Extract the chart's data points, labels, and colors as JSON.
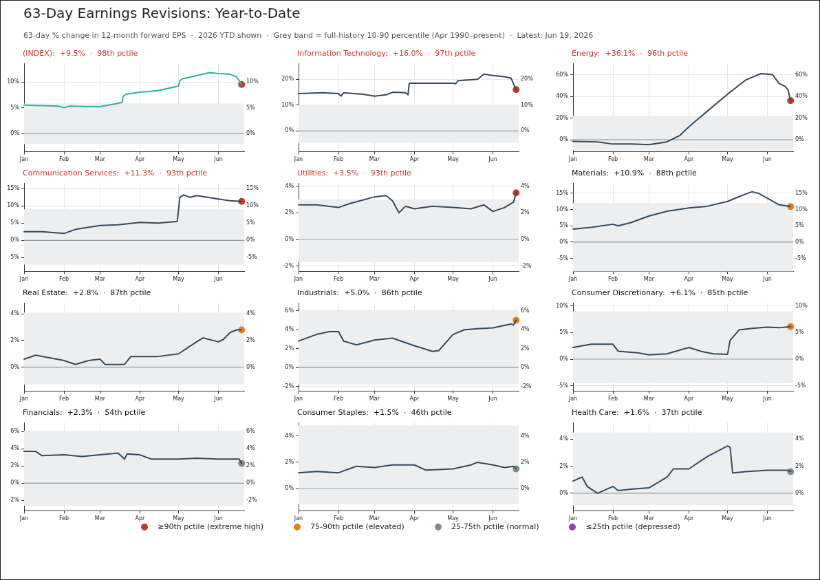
{
  "chart_data": [
    {
      "type": "other",
      "title": "63-Day Earnings Revisions: Year-to-Date",
      "subtitle": "63-day % change in 12-month forward EPS  ·  2026 YTD shown  ·  Grey band = full-history 10-90 percentile (Apr 1990–present)  ·  Latest: Jun 19, 2026"
    },
    {
      "type": "line",
      "title": "(INDEX):  +9.5%  ·  98th pctile",
      "grid": true,
      "series": [
        {
          "color": "#2ab3a3",
          "x": [
            "2026-01-01",
            "2026-01-15",
            "2026-01-28",
            "2026-02-01",
            "2026-02-05",
            "2026-02-20",
            "2026-03-01",
            "2026-03-10",
            "2026-03-18",
            "2026-03-19",
            "2026-03-21",
            "2026-04-01",
            "2026-04-15",
            "2026-05-01",
            "2026-05-02",
            "2026-05-04",
            "2026-05-15",
            "2026-05-25",
            "2026-06-01",
            "2026-06-10",
            "2026-06-15",
            "2026-06-19"
          ],
          "values": [
            5.5,
            5.4,
            5.3,
            5.0,
            5.3,
            5.2,
            5.2,
            5.6,
            6.0,
            7.2,
            7.6,
            8.0,
            8.3,
            9.2,
            10.2,
            10.6,
            11.2,
            11.8,
            11.6,
            11.5,
            11.0,
            9.5
          ]
        },
        {
          "type": "scatter",
          "x": [
            "2026-06-19"
          ],
          "color": "#c0392b",
          "values": [
            9.5
          ]
        }
      ],
      "xlim": [
        "2026-01-01",
        "2026-06-21"
      ],
      "xticks": [
        {
          "value": "2026-01-01",
          "label": "Jan"
        },
        {
          "value": "2026-02-01",
          "label": "Feb"
        },
        {
          "value": "2026-03-01",
          "label": "Mar"
        },
        {
          "value": "2026-04-01",
          "label": "Apr"
        },
        {
          "value": "2026-05-01",
          "label": "May"
        },
        {
          "value": "2026-06-01",
          "label": "Jun"
        }
      ],
      "ylim": [
        -3.5,
        13.5
      ],
      "yticks": [
        {
          "value": 0,
          "label": "0%"
        },
        {
          "value": 5,
          "label": "5%"
        },
        {
          "value": 10,
          "label": "10%"
        }
      ],
      "y2lim": [
        -3.5,
        13.5
      ],
      "y2ticks": [
        {
          "value": 0,
          "label": "0%"
        },
        {
          "value": 5,
          "label": "5%"
        },
        {
          "value": 10,
          "label": "10%"
        }
      ],
      "bands": [
        {
          "axis": "y",
          "from": -2,
          "to": 5.8,
          "color": "#eceef0"
        }
      ],
      "ref_lines": [
        {
          "axis": "y",
          "value": 0,
          "color": "#999999"
        }
      ]
    },
    {
      "type": "line",
      "title": "Information Technology:  +16.0%  ·  97th pctile",
      "grid": true,
      "series": [
        {
          "color": "#34495e",
          "x": [
            "2026-01-01",
            "2026-01-20",
            "2026-02-01",
            "2026-02-03",
            "2026-02-05",
            "2026-02-20",
            "2026-03-01",
            "2026-03-10",
            "2026-03-15",
            "2026-03-25",
            "2026-03-27",
            "2026-03-28",
            "2026-04-15",
            "2026-05-01",
            "2026-05-03",
            "2026-05-05",
            "2026-05-20",
            "2026-05-25",
            "2026-06-01",
            "2026-06-10",
            "2026-06-15",
            "2026-06-19"
          ],
          "values": [
            14.5,
            14.8,
            14.5,
            13.5,
            14.8,
            14.2,
            13.5,
            14.0,
            15.0,
            14.8,
            14.0,
            18.5,
            18.5,
            18.5,
            18.3,
            19.5,
            20.0,
            22.0,
            21.5,
            21.0,
            20.5,
            16.0
          ]
        },
        {
          "type": "scatter",
          "x": [
            "2026-06-19"
          ],
          "color": "#c0392b",
          "values": [
            16.0
          ]
        }
      ],
      "xlim": [
        "2026-01-01",
        "2026-06-21"
      ],
      "xticks": [
        {
          "value": "2026-01-01",
          "label": "Jan"
        },
        {
          "value": "2026-02-01",
          "label": "Feb"
        },
        {
          "value": "2026-03-01",
          "label": "Mar"
        },
        {
          "value": "2026-04-01",
          "label": "Apr"
        },
        {
          "value": "2026-05-01",
          "label": "May"
        },
        {
          "value": "2026-06-01",
          "label": "Jun"
        }
      ],
      "ylim": [
        -8,
        26
      ],
      "yticks": [
        {
          "value": 0,
          "label": "0%"
        },
        {
          "value": 10,
          "label": "10%"
        },
        {
          "value": 20,
          "label": "20%"
        }
      ],
      "y2lim": [
        -8,
        26
      ],
      "y2ticks": [
        {
          "value": 0,
          "label": "0%"
        },
        {
          "value": 10,
          "label": "10%"
        },
        {
          "value": 20,
          "label": "20%"
        }
      ],
      "bands": [
        {
          "axis": "y",
          "from": -4.5,
          "to": 10,
          "color": "#eceef0"
        }
      ],
      "ref_lines": [
        {
          "axis": "y",
          "value": 0,
          "color": "#999999"
        }
      ]
    },
    {
      "type": "line",
      "title": "Energy:  +36.1%  ·  96th pctile",
      "grid": true,
      "series": [
        {
          "color": "#34495e",
          "x": [
            "2026-01-01",
            "2026-01-20",
            "2026-02-01",
            "2026-02-15",
            "2026-03-01",
            "2026-03-15",
            "2026-03-25",
            "2026-04-01",
            "2026-04-15",
            "2026-05-01",
            "2026-05-15",
            "2026-05-27",
            "2026-06-05",
            "2026-06-10",
            "2026-06-15",
            "2026-06-17",
            "2026-06-19"
          ],
          "values": [
            -1.5,
            -2,
            -4,
            -4,
            -4.5,
            -2,
            4,
            12,
            26,
            42,
            55,
            61,
            60,
            52,
            49,
            46,
            36.1
          ]
        },
        {
          "type": "scatter",
          "x": [
            "2026-06-19"
          ],
          "color": "#c0392b",
          "values": [
            36.1
          ]
        }
      ],
      "xlim": [
        "2026-01-01",
        "2026-06-21"
      ],
      "xticks": [
        {
          "value": "2026-01-01",
          "label": "Jan"
        },
        {
          "value": "2026-02-01",
          "label": "Feb"
        },
        {
          "value": "2026-03-01",
          "label": "Mar"
        },
        {
          "value": "2026-04-01",
          "label": "Apr"
        },
        {
          "value": "2026-05-01",
          "label": "May"
        },
        {
          "value": "2026-06-01",
          "label": "Jun"
        }
      ],
      "ylim": [
        -11,
        70
      ],
      "yticks": [
        {
          "value": 0,
          "label": "0%"
        },
        {
          "value": 20,
          "label": "20%"
        },
        {
          "value": 40,
          "label": "40%"
        },
        {
          "value": 60,
          "label": "60%"
        }
      ],
      "y2lim": [
        -11,
        70
      ],
      "y2ticks": [
        {
          "value": 0,
          "label": "0%"
        },
        {
          "value": 20,
          "label": "20%"
        },
        {
          "value": 40,
          "label": "40%"
        },
        {
          "value": 60,
          "label": "60%"
        }
      ],
      "bands": [
        {
          "axis": "y",
          "from": -10,
          "to": 22,
          "color": "#eceef0"
        }
      ],
      "ref_lines": [
        {
          "axis": "y",
          "value": 0,
          "color": "#999999"
        }
      ]
    },
    {
      "type": "line",
      "title": "Communication Services:  +11.3%  ·  93th pctile",
      "grid": true,
      "series": [
        {
          "color": "#34495e",
          "x": [
            "2026-01-01",
            "2026-01-15",
            "2026-02-01",
            "2026-02-10",
            "2026-03-01",
            "2026-03-15",
            "2026-04-01",
            "2026-04-15",
            "2026-04-30",
            "2026-05-02",
            "2026-05-05",
            "2026-05-10",
            "2026-05-15",
            "2026-06-01",
            "2026-06-10",
            "2026-06-19"
          ],
          "values": [
            2.5,
            2.5,
            2.0,
            3.2,
            4.3,
            4.5,
            5.2,
            5.0,
            5.5,
            12.5,
            13.2,
            12.5,
            13.0,
            12.0,
            11.5,
            11.3
          ]
        },
        {
          "type": "scatter",
          "x": [
            "2026-06-19"
          ],
          "color": "#c0392b",
          "values": [
            11.3
          ]
        }
      ],
      "xlim": [
        "2026-01-01",
        "2026-06-21"
      ],
      "xticks": [
        {
          "value": "2026-01-01",
          "label": "Jan"
        },
        {
          "value": "2026-02-01",
          "label": "Feb"
        },
        {
          "value": "2026-03-01",
          "label": "Mar"
        },
        {
          "value": "2026-04-01",
          "label": "Apr"
        },
        {
          "value": "2026-05-01",
          "label": "May"
        },
        {
          "value": "2026-06-01",
          "label": "Jun"
        }
      ],
      "ylim": [
        -9,
        16.5
      ],
      "yticks": [
        {
          "value": -5,
          "label": "-5%"
        },
        {
          "value": 0,
          "label": "0%"
        },
        {
          "value": 5,
          "label": "5%"
        },
        {
          "value": 10,
          "label": "10%"
        },
        {
          "value": 15,
          "label": "15%"
        }
      ],
      "y2lim": [
        -9,
        16.5
      ],
      "y2ticks": [
        {
          "value": -5,
          "label": "-5%"
        },
        {
          "value": 0,
          "label": "0%"
        },
        {
          "value": 5,
          "label": "5%"
        },
        {
          "value": 10,
          "label": "10%"
        },
        {
          "value": 15,
          "label": "15%"
        }
      ],
      "bands": [
        {
          "axis": "y",
          "from": -7,
          "to": 9,
          "color": "#eceef0"
        }
      ],
      "ref_lines": [
        {
          "axis": "y",
          "value": 0,
          "color": "#999999"
        }
      ]
    },
    {
      "type": "line",
      "title": "Utilities:  +3.5%  ·  93th pctile",
      "grid": true,
      "series": [
        {
          "color": "#34495e",
          "x": [
            "2026-01-01",
            "2026-01-15",
            "2026-02-01",
            "2026-02-10",
            "2026-03-01",
            "2026-03-10",
            "2026-03-15",
            "2026-03-20",
            "2026-03-25",
            "2026-04-01",
            "2026-04-15",
            "2026-05-01",
            "2026-05-15",
            "2026-05-25",
            "2026-06-01",
            "2026-06-10",
            "2026-06-17",
            "2026-06-19"
          ],
          "values": [
            2.6,
            2.6,
            2.4,
            2.7,
            3.2,
            3.3,
            2.9,
            2.0,
            2.5,
            2.3,
            2.5,
            2.4,
            2.3,
            2.6,
            2.1,
            2.4,
            2.8,
            3.5
          ]
        },
        {
          "type": "scatter",
          "x": [
            "2026-06-19"
          ],
          "color": "#c0392b",
          "values": [
            3.5
          ]
        }
      ],
      "xlim": [
        "2026-01-01",
        "2026-06-21"
      ],
      "xticks": [
        {
          "value": "2026-01-01",
          "label": "Jan"
        },
        {
          "value": "2026-02-01",
          "label": "Feb"
        },
        {
          "value": "2026-03-01",
          "label": "Mar"
        },
        {
          "value": "2026-04-01",
          "label": "Apr"
        },
        {
          "value": "2026-05-01",
          "label": "May"
        },
        {
          "value": "2026-06-01",
          "label": "Jun"
        }
      ],
      "ylim": [
        -2.4,
        4.2
      ],
      "yticks": [
        {
          "value": -2,
          "label": "-2%"
        },
        {
          "value": 0,
          "label": "0%"
        },
        {
          "value": 2,
          "label": "2%"
        },
        {
          "value": 4,
          "label": "4%"
        }
      ],
      "y2lim": [
        -2.4,
        4.2
      ],
      "y2ticks": [
        {
          "value": -2,
          "label": "-2%"
        },
        {
          "value": 0,
          "label": "0%"
        },
        {
          "value": 2,
          "label": "2%"
        },
        {
          "value": 4,
          "label": "4%"
        }
      ],
      "bands": [
        {
          "axis": "y",
          "from": -1.7,
          "to": 3.0,
          "color": "#eceef0"
        }
      ],
      "ref_lines": [
        {
          "axis": "y",
          "value": 0,
          "color": "#999999"
        }
      ]
    },
    {
      "type": "line",
      "title": "Materials:  +10.9%  ·  88th pctile",
      "grid": true,
      "series": [
        {
          "color": "#34495e",
          "x": [
            "2026-01-01",
            "2026-01-15",
            "2026-02-01",
            "2026-02-05",
            "2026-02-15",
            "2026-03-01",
            "2026-03-15",
            "2026-04-01",
            "2026-04-15",
            "2026-05-01",
            "2026-05-10",
            "2026-05-20",
            "2026-05-25",
            "2026-06-01",
            "2026-06-10",
            "2026-06-19"
          ],
          "values": [
            4,
            4.5,
            5.5,
            5,
            6,
            8,
            9.5,
            10.5,
            11,
            12.5,
            14,
            15.5,
            15,
            13.5,
            11.5,
            10.9
          ]
        },
        {
          "type": "scatter",
          "x": [
            "2026-06-19"
          ],
          "color": "#e67e22",
          "values": [
            10.9
          ]
        }
      ],
      "xlim": [
        "2026-01-01",
        "2026-06-21"
      ],
      "xticks": [
        {
          "value": "2026-01-01",
          "label": "Jan"
        },
        {
          "value": "2026-02-01",
          "label": "Feb"
        },
        {
          "value": "2026-03-01",
          "label": "Mar"
        },
        {
          "value": "2026-04-01",
          "label": "Apr"
        },
        {
          "value": "2026-05-01",
          "label": "May"
        },
        {
          "value": "2026-06-01",
          "label": "Jun"
        }
      ],
      "ylim": [
        -9,
        18
      ],
      "yticks": [
        {
          "value": -5,
          "label": "-5%"
        },
        {
          "value": 0,
          "label": "0%"
        },
        {
          "value": 5,
          "label": "5%"
        },
        {
          "value": 10,
          "label": "10%"
        },
        {
          "value": 15,
          "label": "15%"
        }
      ],
      "y2lim": [
        -9,
        18
      ],
      "y2ticks": [
        {
          "value": -5,
          "label": "-5%"
        },
        {
          "value": 0,
          "label": "0%"
        },
        {
          "value": 5,
          "label": "5%"
        },
        {
          "value": 10,
          "label": "10%"
        },
        {
          "value": 15,
          "label": "15%"
        }
      ],
      "bands": [
        {
          "axis": "y",
          "from": -9,
          "to": 12,
          "color": "#eceef0"
        }
      ],
      "ref_lines": [
        {
          "axis": "y",
          "value": 0,
          "color": "#999999"
        }
      ]
    },
    {
      "type": "line",
      "title": "Real Estate:  +2.8%  ·  87th pctile",
      "grid": true,
      "series": [
        {
          "color": "#34495e",
          "x": [
            "2026-01-01",
            "2026-01-10",
            "2026-02-01",
            "2026-02-10",
            "2026-02-20",
            "2026-03-01",
            "2026-03-05",
            "2026-03-20",
            "2026-03-25",
            "2026-04-01",
            "2026-04-15",
            "2026-05-01",
            "2026-05-15",
            "2026-05-20",
            "2026-06-01",
            "2026-06-05",
            "2026-06-10",
            "2026-06-15",
            "2026-06-19"
          ],
          "values": [
            0.6,
            0.9,
            0.5,
            0.2,
            0.5,
            0.6,
            0.2,
            0.2,
            0.8,
            0.8,
            0.8,
            1.0,
            1.9,
            2.2,
            1.9,
            2.1,
            2.6,
            2.8,
            2.8
          ]
        },
        {
          "type": "scatter",
          "x": [
            "2026-06-19"
          ],
          "color": "#e67e22",
          "values": [
            2.8
          ]
        }
      ],
      "xlim": [
        "2026-01-01",
        "2026-06-21"
      ],
      "xticks": [
        {
          "value": "2026-01-01",
          "label": "Jan"
        },
        {
          "value": "2026-02-01",
          "label": "Feb"
        },
        {
          "value": "2026-03-01",
          "label": "Mar"
        },
        {
          "value": "2026-04-01",
          "label": "Apr"
        },
        {
          "value": "2026-05-01",
          "label": "May"
        },
        {
          "value": "2026-06-01",
          "label": "Jun"
        }
      ],
      "ylim": [
        -1.8,
        4.8
      ],
      "yticks": [
        {
          "value": 0,
          "label": "0%"
        },
        {
          "value": 2,
          "label": "2%"
        },
        {
          "value": 4,
          "label": "4%"
        }
      ],
      "y2lim": [
        -1.8,
        4.8
      ],
      "y2ticks": [
        {
          "value": 0,
          "label": "0%"
        },
        {
          "value": 2,
          "label": "2%"
        },
        {
          "value": 4,
          "label": "4%"
        }
      ],
      "bands": [
        {
          "axis": "y",
          "from": -1.3,
          "to": 4.1,
          "color": "#eceef0"
        }
      ],
      "ref_lines": [
        {
          "axis": "y",
          "value": 0,
          "color": "#999999"
        }
      ]
    },
    {
      "type": "line",
      "title": "Industrials:  +5.0%  ·  86th pctile",
      "grid": true,
      "series": [
        {
          "color": "#34495e",
          "x": [
            "2026-01-01",
            "2026-01-15",
            "2026-01-25",
            "2026-02-01",
            "2026-02-05",
            "2026-02-15",
            "2026-03-01",
            "2026-03-15",
            "2026-04-01",
            "2026-04-15",
            "2026-04-20",
            "2026-05-01",
            "2026-05-10",
            "2026-05-20",
            "2026-06-01",
            "2026-06-15",
            "2026-06-17",
            "2026-06-19"
          ],
          "values": [
            2.8,
            3.5,
            3.8,
            3.8,
            2.8,
            2.4,
            2.9,
            3.1,
            2.3,
            1.7,
            1.8,
            3.5,
            4.0,
            4.1,
            4.2,
            4.6,
            4.5,
            5.0
          ]
        },
        {
          "type": "scatter",
          "x": [
            "2026-06-19"
          ],
          "color": "#e67e22",
          "values": [
            5.0
          ]
        }
      ],
      "xlim": [
        "2026-01-01",
        "2026-06-21"
      ],
      "xticks": [
        {
          "value": "2026-01-01",
          "label": "Jan"
        },
        {
          "value": "2026-02-01",
          "label": "Feb"
        },
        {
          "value": "2026-03-01",
          "label": "Mar"
        },
        {
          "value": "2026-04-01",
          "label": "Apr"
        },
        {
          "value": "2026-05-01",
          "label": "May"
        },
        {
          "value": "2026-06-01",
          "label": "Jun"
        }
      ],
      "ylim": [
        -2.5,
        6.8
      ],
      "yticks": [
        {
          "value": -2,
          "label": "-2%"
        },
        {
          "value": 0,
          "label": "0%"
        },
        {
          "value": 2,
          "label": "2%"
        },
        {
          "value": 4,
          "label": "4%"
        },
        {
          "value": 6,
          "label": "6%"
        }
      ],
      "y2lim": [
        -2.5,
        6.8
      ],
      "y2ticks": [
        {
          "value": -2,
          "label": "-2%"
        },
        {
          "value": 0,
          "label": "0%"
        },
        {
          "value": 2,
          "label": "2%"
        },
        {
          "value": 4,
          "label": "4%"
        },
        {
          "value": 6,
          "label": "6%"
        }
      ],
      "bands": [
        {
          "axis": "y",
          "from": -1.8,
          "to": 6.0,
          "color": "#eceef0"
        }
      ],
      "ref_lines": [
        {
          "axis": "y",
          "value": 0,
          "color": "#999999"
        }
      ]
    },
    {
      "type": "line",
      "title": "Consumer Discretionary:  +6.1%  ·  85th pctile",
      "grid": true,
      "series": [
        {
          "color": "#34495e",
          "x": [
            "2026-01-01",
            "2026-01-15",
            "2026-02-01",
            "2026-02-05",
            "2026-02-20",
            "2026-03-01",
            "2026-03-15",
            "2026-04-01",
            "2026-04-10",
            "2026-04-20",
            "2026-05-01",
            "2026-05-03",
            "2026-05-10",
            "2026-05-20",
            "2026-06-01",
            "2026-06-10",
            "2026-06-19"
          ],
          "values": [
            2.2,
            2.8,
            2.8,
            1.5,
            1.2,
            0.8,
            1.0,
            2.2,
            1.5,
            1.0,
            0.9,
            3.5,
            5.5,
            5.8,
            6.0,
            5.9,
            6.1
          ]
        },
        {
          "type": "scatter",
          "x": [
            "2026-06-19"
          ],
          "color": "#e67e22",
          "values": [
            6.1
          ]
        }
      ],
      "xlim": [
        "2026-01-01",
        "2026-06-21"
      ],
      "xticks": [
        {
          "value": "2026-01-01",
          "label": "Jan"
        },
        {
          "value": "2026-02-01",
          "label": "Feb"
        },
        {
          "value": "2026-03-01",
          "label": "Mar"
        },
        {
          "value": "2026-04-01",
          "label": "Apr"
        },
        {
          "value": "2026-05-01",
          "label": "May"
        },
        {
          "value": "2026-06-01",
          "label": "Jun"
        }
      ],
      "ylim": [
        -6,
        10.5
      ],
      "yticks": [
        {
          "value": -5,
          "label": "-5%"
        },
        {
          "value": 0,
          "label": "0%"
        },
        {
          "value": 5,
          "label": "5%"
        },
        {
          "value": 10,
          "label": "10%"
        }
      ],
      "y2lim": [
        -6,
        10.5
      ],
      "y2ticks": [
        {
          "value": -5,
          "label": "-5%"
        },
        {
          "value": 0,
          "label": "0%"
        },
        {
          "value": 5,
          "label": "5%"
        },
        {
          "value": 10,
          "label": "10%"
        }
      ],
      "bands": [
        {
          "axis": "y",
          "from": -4.5,
          "to": 9,
          "color": "#eceef0"
        }
      ],
      "ref_lines": [
        {
          "axis": "y",
          "value": 0,
          "color": "#999999"
        }
      ]
    },
    {
      "type": "line",
      "title": "Financials:  +2.3%  ·  54th pctile",
      "grid": true,
      "series": [
        {
          "color": "#34495e",
          "x": [
            "2026-01-01",
            "2026-01-10",
            "2026-01-15",
            "2026-02-01",
            "2026-02-15",
            "2026-03-01",
            "2026-03-15",
            "2026-03-20",
            "2026-03-22",
            "2026-04-01",
            "2026-04-10",
            "2026-05-01",
            "2026-05-15",
            "2026-06-01",
            "2026-06-17",
            "2026-06-19"
          ],
          "values": [
            3.7,
            3.7,
            3.2,
            3.3,
            3.1,
            3.3,
            3.5,
            2.8,
            3.4,
            3.3,
            2.8,
            2.8,
            2.9,
            2.8,
            2.8,
            2.3
          ]
        },
        {
          "type": "scatter",
          "x": [
            "2026-06-19"
          ],
          "color": "#7f8c8d",
          "values": [
            2.3
          ]
        }
      ],
      "xlim": [
        "2026-01-01",
        "2026-06-21"
      ],
      "xticks": [
        {
          "value": "2026-01-01",
          "label": "Jan"
        },
        {
          "value": "2026-02-01",
          "label": "Feb"
        },
        {
          "value": "2026-03-01",
          "label": "Mar"
        },
        {
          "value": "2026-04-01",
          "label": "Apr"
        },
        {
          "value": "2026-05-01",
          "label": "May"
        },
        {
          "value": "2026-06-01",
          "label": "Jun"
        }
      ],
      "ylim": [
        -3.2,
        7
      ],
      "yticks": [
        {
          "value": -2,
          "label": "-2%"
        },
        {
          "value": 0,
          "label": "0%"
        },
        {
          "value": 2,
          "label": "2%"
        },
        {
          "value": 4,
          "label": "4%"
        },
        {
          "value": 6,
          "label": "6%"
        }
      ],
      "y2lim": [
        -3.2,
        7
      ],
      "y2ticks": [
        {
          "value": -2,
          "label": "-2%"
        },
        {
          "value": 0,
          "label": "0%"
        },
        {
          "value": 2,
          "label": "2%"
        },
        {
          "value": 4,
          "label": "4%"
        },
        {
          "value": 6,
          "label": "6%"
        }
      ],
      "bands": [
        {
          "axis": "y",
          "from": -2.6,
          "to": 6.1,
          "color": "#eceef0"
        }
      ],
      "ref_lines": [
        {
          "axis": "y",
          "value": 0,
          "color": "#999999"
        }
      ]
    },
    {
      "type": "line",
      "title": "Consumer Staples:  +1.5%  ·  46th pctile",
      "grid": true,
      "series": [
        {
          "color": "#34495e",
          "x": [
            "2026-01-01",
            "2026-01-15",
            "2026-02-01",
            "2026-02-15",
            "2026-03-01",
            "2026-03-15",
            "2026-04-01",
            "2026-04-10",
            "2026-05-01",
            "2026-05-15",
            "2026-05-20",
            "2026-06-01",
            "2026-06-10",
            "2026-06-17",
            "2026-06-19"
          ],
          "values": [
            1.2,
            1.3,
            1.2,
            1.7,
            1.6,
            1.8,
            1.8,
            1.4,
            1.5,
            1.8,
            2.0,
            1.8,
            1.6,
            1.7,
            1.5
          ]
        },
        {
          "type": "scatter",
          "x": [
            "2026-06-19"
          ],
          "color": "#7f8c8d",
          "values": [
            1.5
          ]
        }
      ],
      "xlim": [
        "2026-01-01",
        "2026-06-21"
      ],
      "xticks": [
        {
          "value": "2026-01-01",
          "label": "Jan"
        },
        {
          "value": "2026-02-01",
          "label": "Feb"
        },
        {
          "value": "2026-03-01",
          "label": "Mar"
        },
        {
          "value": "2026-04-01",
          "label": "Apr"
        },
        {
          "value": "2026-05-01",
          "label": "May"
        },
        {
          "value": "2026-06-01",
          "label": "Jun"
        }
      ],
      "ylim": [
        -1.7,
        5
      ],
      "yticks": [
        {
          "value": 0,
          "label": "0%"
        },
        {
          "value": 2,
          "label": "2%"
        },
        {
          "value": 4,
          "label": "4%"
        }
      ],
      "y2lim": [
        -1.7,
        5
      ],
      "y2ticks": [
        {
          "value": 0,
          "label": "0%"
        },
        {
          "value": 2,
          "label": "2%"
        },
        {
          "value": 4,
          "label": "4%"
        }
      ],
      "bands": [
        {
          "axis": "y",
          "from": -1.2,
          "to": 4.8,
          "color": "#eceef0"
        }
      ],
      "ref_lines": [
        {
          "axis": "y",
          "value": 0,
          "color": "#999999"
        }
      ]
    },
    {
      "type": "line",
      "title": "Health Care:  +1.6%  ·  37th pctile",
      "grid": true,
      "series": [
        {
          "color": "#34495e",
          "x": [
            "2026-01-01",
            "2026-01-08",
            "2026-01-12",
            "2026-01-20",
            "2026-02-01",
            "2026-02-05",
            "2026-02-15",
            "2026-03-01",
            "2026-03-15",
            "2026-03-20",
            "2026-04-01",
            "2026-04-15",
            "2026-04-25",
            "2026-05-01",
            "2026-05-03",
            "2026-05-05",
            "2026-05-15",
            "2026-06-01",
            "2026-06-17",
            "2026-06-19"
          ],
          "values": [
            0.9,
            1.2,
            0.5,
            0.0,
            0.5,
            0.2,
            0.3,
            0.4,
            1.2,
            1.8,
            1.8,
            2.7,
            3.2,
            3.5,
            3.4,
            1.5,
            1.6,
            1.7,
            1.7,
            1.6
          ]
        },
        {
          "type": "scatter",
          "x": [
            "2026-06-19"
          ],
          "color": "#7f8c8d",
          "values": [
            1.6
          ]
        }
      ],
      "xlim": [
        "2026-01-01",
        "2026-06-21"
      ],
      "xticks": [
        {
          "value": "2026-01-01",
          "label": "Jan"
        },
        {
          "value": "2026-02-01",
          "label": "Feb"
        },
        {
          "value": "2026-03-01",
          "label": "Mar"
        },
        {
          "value": "2026-04-01",
          "label": "Apr"
        },
        {
          "value": "2026-05-01",
          "label": "May"
        },
        {
          "value": "2026-06-01",
          "label": "Jun"
        }
      ],
      "ylim": [
        -1.3,
        5.2
      ],
      "yticks": [
        {
          "value": 0,
          "label": "0%"
        },
        {
          "value": 2,
          "label": "2%"
        },
        {
          "value": 4,
          "label": "4%"
        }
      ],
      "y2lim": [
        -1.3,
        5.2
      ],
      "y2ticks": [
        {
          "value": 0,
          "label": "0%"
        },
        {
          "value": 2,
          "label": "2%"
        },
        {
          "value": 4,
          "label": "4%"
        }
      ],
      "bands": [
        {
          "axis": "y",
          "from": -0.9,
          "to": 4.5,
          "color": "#eceef0"
        }
      ],
      "ref_lines": [
        {
          "axis": "y",
          "value": 0,
          "color": "#999999"
        }
      ]
    },
    {
      "type": "other",
      "categories": [
        "≥90th pctile (extreme high)",
        "75-90th pctile (elevated)",
        "25-75th pctile (normal)",
        "≤25th pctile (depressed)"
      ],
      "colors": [
        "#c0392b",
        "#e67e22",
        "#7f8c8d",
        "#8e44ad"
      ]
    }
  ]
}
